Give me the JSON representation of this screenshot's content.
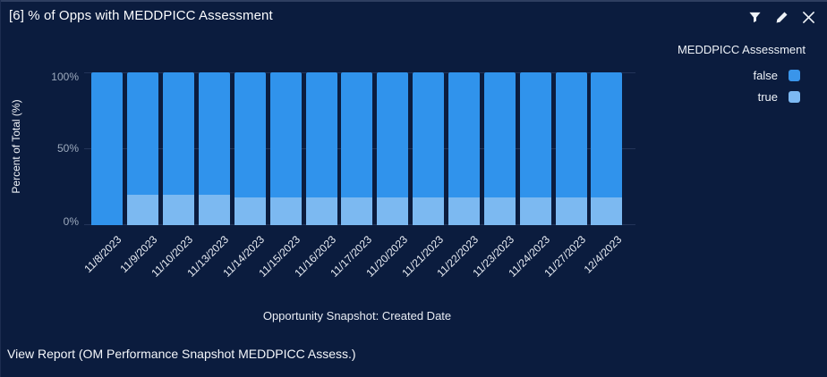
{
  "widget": {
    "title": "[6] % of Opps with MEDDPICC Assessment",
    "footer_link": "View Report (OM Performance Snapshot MEDDPICC Assess.)"
  },
  "header_icons": [
    {
      "name": "filter-icon"
    },
    {
      "name": "edit-icon"
    },
    {
      "name": "close-icon"
    }
  ],
  "legend": {
    "title": "MEDDPICC Assessment",
    "items": [
      {
        "label": "false",
        "color": "#3a95ea"
      },
      {
        "label": "true",
        "color": "#7db9f2"
      }
    ]
  },
  "chart_data": {
    "type": "bar",
    "stacked": true,
    "title": "[6] % of Opps with MEDDPICC Assessment",
    "xlabel": "Opportunity Snapshot: Created Date",
    "ylabel": "Percent of Total (%)",
    "ylim": [
      0,
      100
    ],
    "yticks": [
      "100%",
      "50%",
      "0%"
    ],
    "grid": true,
    "legend_position": "right",
    "categories": [
      "11/8/2023",
      "11/9/2023",
      "11/10/2023",
      "11/13/2023",
      "11/14/2023",
      "11/15/2023",
      "11/16/2023",
      "11/17/2023",
      "11/20/2023",
      "11/21/2023",
      "11/22/2023",
      "11/23/2023",
      "11/24/2023",
      "11/27/2023",
      "12/4/2023"
    ],
    "series": [
      {
        "name": "false",
        "color": "#3093ec",
        "values": [
          100,
          80,
          80,
          80,
          82,
          82,
          82,
          82,
          82,
          82,
          82,
          82,
          82,
          82,
          82
        ]
      },
      {
        "name": "true",
        "color": "#7cb9f1",
        "values": [
          0,
          20,
          20,
          20,
          18,
          18,
          18,
          18,
          18,
          18,
          18,
          18,
          18,
          18,
          18
        ]
      }
    ]
  },
  "colors": {
    "background": "#0b1c3e",
    "gridline": "#233459",
    "tick_label": "#9daabd",
    "text": "#f4f7fb"
  }
}
